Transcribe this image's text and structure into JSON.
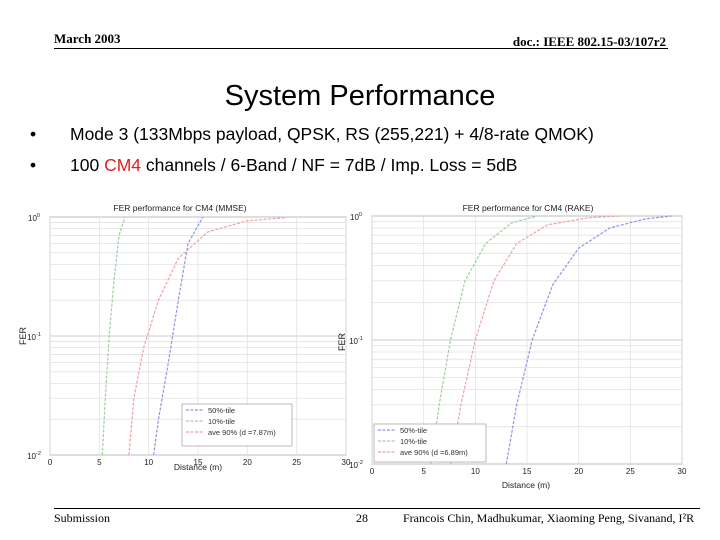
{
  "header": {
    "date": "March 2003",
    "doc_id": "doc.: IEEE 802.15-03/107r2"
  },
  "title": "System Performance",
  "bullets": [
    {
      "symbol": "•",
      "text": "Mode 3 (133Mbps payload, QPSK, RS (255,221) + 4/8-rate QMOK)"
    },
    {
      "symbol": "•",
      "pre": "100 ",
      "highlight": "CM4",
      "post": " channels / 6-Band / NF = 7dB / Imp. Loss = 5dB"
    }
  ],
  "footer": {
    "left": "Submission",
    "page": "28",
    "authors": "Francois Chin, Madhukumar, Xiaoming Peng, Sivanand, I²R"
  },
  "chart_data": [
    {
      "type": "line",
      "title": "FER performance for CM4 (MMSE)",
      "xlabel": "Distance (m)",
      "ylabel": "FER",
      "xlim": [
        0,
        30
      ],
      "ylim": [
        0.01,
        1
      ],
      "yscale": "log",
      "xticks": [
        "0",
        "5",
        "10",
        "15",
        "20",
        "25",
        "30"
      ],
      "yticks": [
        "10^0",
        "10^-1",
        "10^-2"
      ],
      "grid": true,
      "legend_position": "bottom-right",
      "series": [
        {
          "name": "50%-tile",
          "color": "#8a96e8",
          "x": [
            10.5,
            11.0,
            12.0,
            13.0,
            14.0,
            15.5
          ],
          "y": [
            0.01,
            0.02,
            0.06,
            0.2,
            0.6,
            1.0
          ]
        },
        {
          "name": "10%-tile",
          "color": "#9fcf9f",
          "x": [
            5.3,
            5.6,
            6.0,
            6.5,
            7.0,
            7.6
          ],
          "y": [
            0.01,
            0.03,
            0.1,
            0.3,
            0.7,
            1.0
          ]
        },
        {
          "name": "ave 90% (d =7.87m)",
          "color": "#f2a0a0",
          "x": [
            8.0,
            8.5,
            9.5,
            11.0,
            13.0,
            16.0,
            20.0,
            24.0
          ],
          "y": [
            0.01,
            0.03,
            0.08,
            0.2,
            0.45,
            0.75,
            0.93,
            0.99
          ]
        }
      ]
    },
    {
      "type": "line",
      "title": "FER performance for CM4 (RAKE)",
      "xlabel": "Distance (m)",
      "ylabel": "FER",
      "xlim": [
        0,
        30
      ],
      "ylim": [
        0.01,
        1
      ],
      "yscale": "log",
      "xticks": [
        "0",
        "5",
        "10",
        "15",
        "20",
        "25",
        "30"
      ],
      "yticks": [
        "10^0",
        "10^-1",
        "10^-2"
      ],
      "grid": true,
      "legend_position": "bottom-left",
      "series": [
        {
          "name": "50%-tile",
          "color": "#8a96e8",
          "x": [
            13.0,
            14.0,
            15.5,
            17.5,
            20.0,
            23.0,
            26.5,
            29.0
          ],
          "y": [
            0.01,
            0.03,
            0.1,
            0.28,
            0.55,
            0.8,
            0.95,
            1.0
          ]
        },
        {
          "name": "10%-tile",
          "color": "#9fcf9f",
          "x": [
            5.7,
            6.5,
            7.6,
            9.0,
            11.0,
            13.5,
            16.0
          ],
          "y": [
            0.01,
            0.03,
            0.1,
            0.3,
            0.6,
            0.88,
            1.0
          ]
        },
        {
          "name": "ave 90% (d =6.89m)",
          "color": "#f2a0a0",
          "x": [
            7.6,
            8.6,
            10.0,
            11.8,
            14.0,
            17.0,
            21.0,
            24.0
          ],
          "y": [
            0.01,
            0.03,
            0.1,
            0.3,
            0.6,
            0.85,
            0.97,
            1.0
          ]
        }
      ]
    }
  ]
}
